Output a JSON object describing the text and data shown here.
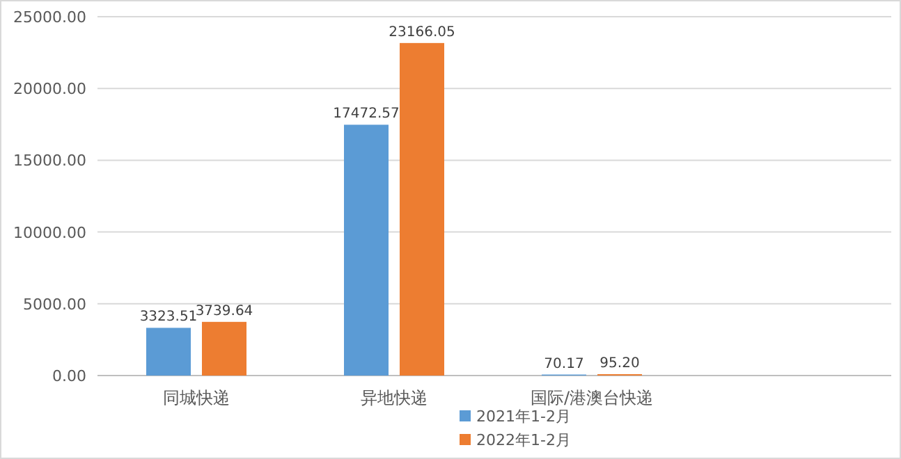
{
  "chart_data": {
    "type": "bar",
    "categories": [
      "同城快递",
      "异地快递",
      "国际/港澳台快递"
    ],
    "series": [
      {
        "name": "2021年1-2月",
        "color": "#5b9bd5",
        "values": [
          3323.51,
          17472.57,
          70.17
        ],
        "value_labels": [
          "3323.51",
          "17472.57",
          "70.17"
        ]
      },
      {
        "name": "2022年1-2月",
        "color": "#ed7d31",
        "values": [
          3739.64,
          23166.05,
          95.2
        ],
        "value_labels": [
          "3739.64",
          "23166.05",
          "95.20"
        ]
      }
    ],
    "ylim": [
      0,
      25000
    ],
    "yticks": [
      {
        "value": 0,
        "label": "0.00"
      },
      {
        "value": 5000,
        "label": "5000.00"
      },
      {
        "value": 10000,
        "label": "10000.00"
      },
      {
        "value": 15000,
        "label": "15000.00"
      },
      {
        "value": 20000,
        "label": "20000.00"
      },
      {
        "value": 25000,
        "label": "25000.00"
      }
    ],
    "grid": "y",
    "legend": "bottom"
  }
}
